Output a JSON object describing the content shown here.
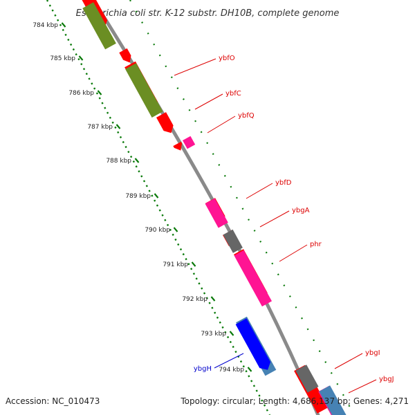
{
  "title": "Escherichia coli str. K-12 substr. DH10B, complete genome",
  "footer": {
    "accession": "Accession: NC_010473",
    "topology": "Topology: circular; Length: 4,686,137 bp; Genes: 4,271"
  },
  "colors": {
    "backbone": "#8a8a8a",
    "cds_red": "#ff0000",
    "olive": "#6b8e23",
    "magenta": "#ff1493",
    "gray": "#666666",
    "steelblue": "#4682b4",
    "blue": "#0000ff",
    "tick_green": "#0a7a0a",
    "label_red": "#dd0000",
    "label_blue": "#0000cc"
  },
  "scale": {
    "ticks": [
      "784 kbp",
      "785 kbp",
      "786 kbp",
      "787 kbp",
      "788 kbp",
      "789 kbp",
      "790 kbp",
      "791 kbp",
      "792 kbp",
      "793 kbp",
      "794 kbp"
    ]
  },
  "gene_labels": [
    "ybfO",
    "ybfC",
    "ybfQ",
    "ybfD",
    "ybgA",
    "phr",
    "ybgH",
    "ybgI",
    "ybgJ"
  ]
}
